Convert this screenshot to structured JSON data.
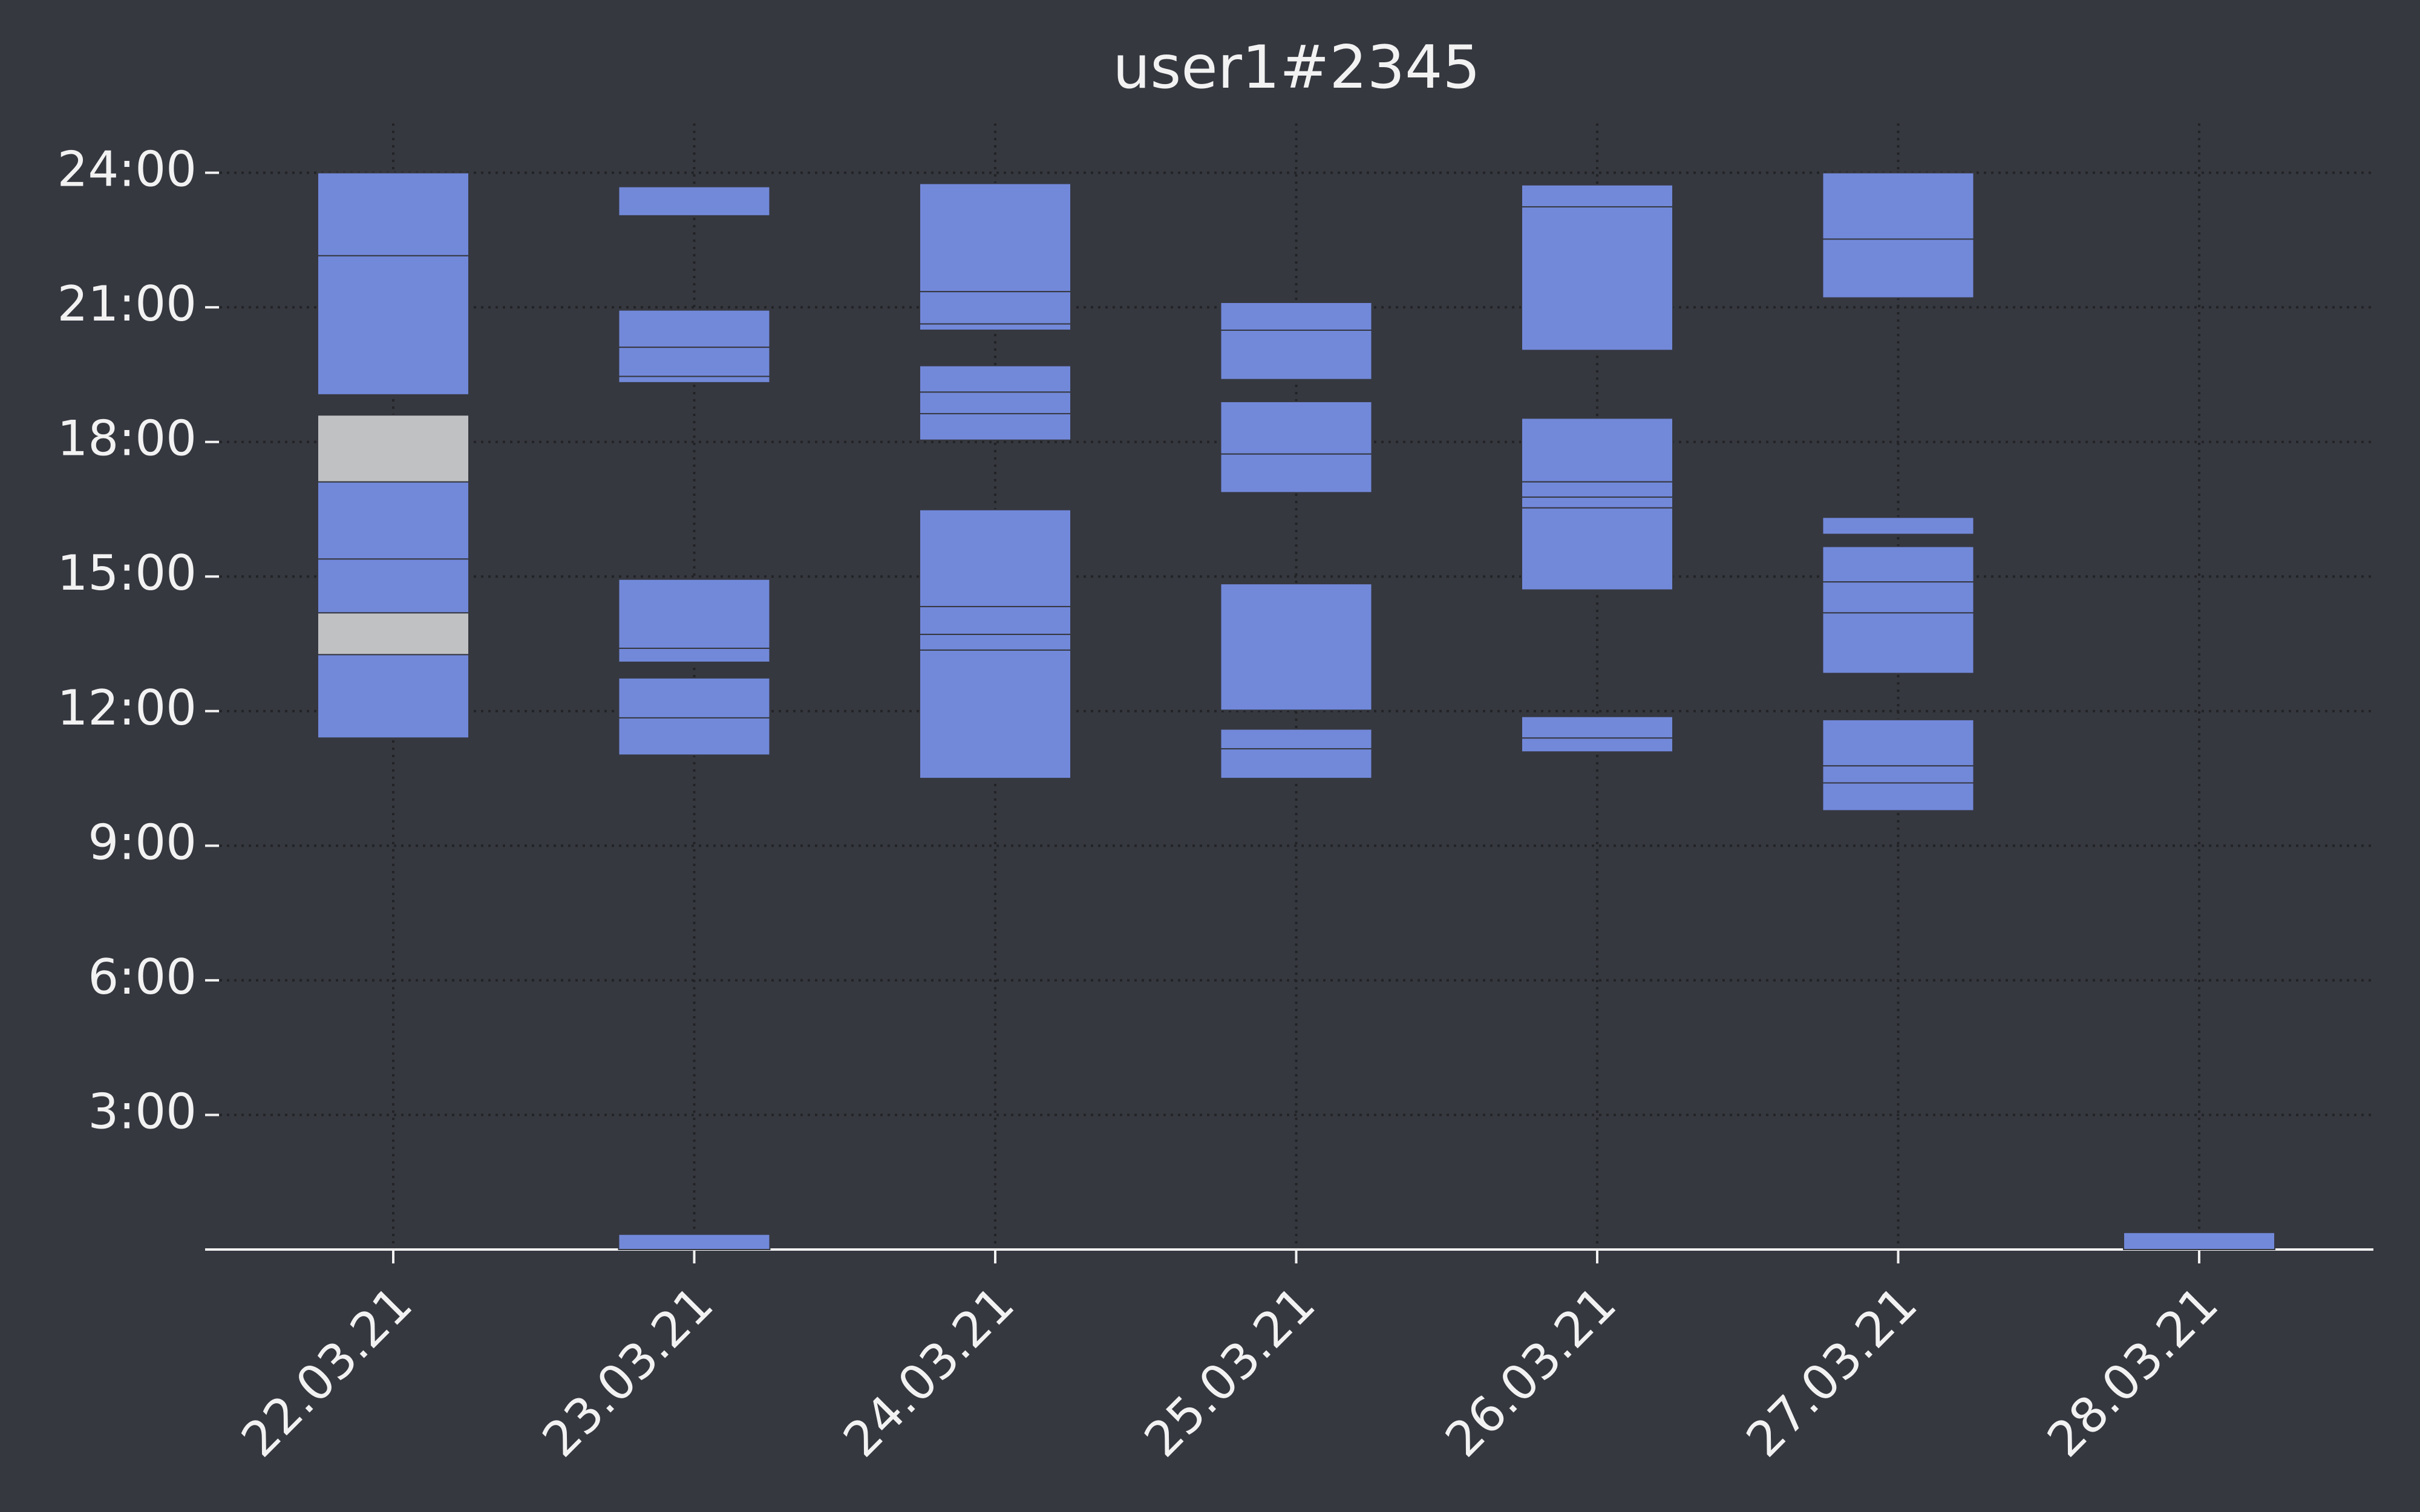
{
  "chart_data": {
    "type": "range-bar",
    "title": "user1#2345",
    "categories": [
      "22.03.21",
      "23.03.21",
      "24.03.21",
      "25.03.21",
      "26.03.21",
      "27.03.21",
      "28.03.21"
    ],
    "ylim": [
      0,
      25.1
    ],
    "yticks": [
      {
        "value": 3,
        "label": "3:00"
      },
      {
        "value": 6,
        "label": "6:00"
      },
      {
        "value": 9,
        "label": "9:00"
      },
      {
        "value": 12,
        "label": "12:00"
      },
      {
        "value": 15,
        "label": "15:00"
      },
      {
        "value": 18,
        "label": "18:00"
      },
      {
        "value": 21,
        "label": "21:00"
      },
      {
        "value": 24,
        "label": "24:00"
      }
    ],
    "grid": true,
    "series": [
      {
        "color": "#7289da",
        "values": [
          [
            [
              22.15,
              24
            ],
            [
              19.05,
              22.15
            ],
            [
              15.39,
              17.11
            ],
            [
              14.19,
              15.39
            ],
            [
              11.4,
              13.26
            ]
          ],
          [
            [
              23.04,
              23.69
            ],
            [
              20.11,
              20.94
            ],
            [
              19.46,
              20.11
            ],
            [
              19.32,
              19.46
            ],
            [
              13.4,
              14.94
            ],
            [
              13.09,
              13.4
            ],
            [
              11.85,
              12.74
            ],
            [
              11.02,
              11.85
            ],
            [
              0,
              0.34
            ]
          ],
          [
            [
              21.35,
              23.76
            ],
            [
              20.63,
              21.35
            ],
            [
              20.49,
              20.63
            ],
            [
              19.11,
              19.7
            ],
            [
              18.63,
              19.11
            ],
            [
              18.04,
              18.63
            ],
            [
              14.33,
              16.49
            ],
            [
              13.71,
              14.33
            ],
            [
              13.36,
              13.71
            ],
            [
              10.5,
              13.36
            ]
          ],
          [
            [
              20.49,
              21.11
            ],
            [
              19.39,
              20.49
            ],
            [
              17.73,
              18.9
            ],
            [
              16.87,
              17.73
            ],
            [
              12.02,
              14.84
            ],
            [
              11.16,
              11.6
            ],
            [
              10.5,
              11.16
            ]
          ],
          [
            [
              23.24,
              23.73
            ],
            [
              20.04,
              23.24
            ],
            [
              17.11,
              18.53
            ],
            [
              16.77,
              17.11
            ],
            [
              16.53,
              16.77
            ],
            [
              14.7,
              16.53
            ],
            [
              11.4,
              11.88
            ],
            [
              11.09,
              11.4
            ]
          ],
          [
            [
              22.52,
              24
            ],
            [
              21.21,
              22.52
            ],
            [
              15.94,
              16.32
            ],
            [
              14.88,
              15.67
            ],
            [
              14.19,
              14.88
            ],
            [
              12.84,
              14.19
            ],
            [
              10.78,
              11.81
            ],
            [
              10.4,
              10.78
            ],
            [
              9.78,
              10.4
            ]
          ],
          [
            [
              0,
              0.38
            ]
          ]
        ]
      },
      {
        "color": "#c0c1c3",
        "values": [
          [
            [
              17.11,
              18.6
            ],
            [
              13.26,
              14.19
            ]
          ],
          [],
          [],
          [],
          [],
          [],
          []
        ]
      }
    ]
  }
}
